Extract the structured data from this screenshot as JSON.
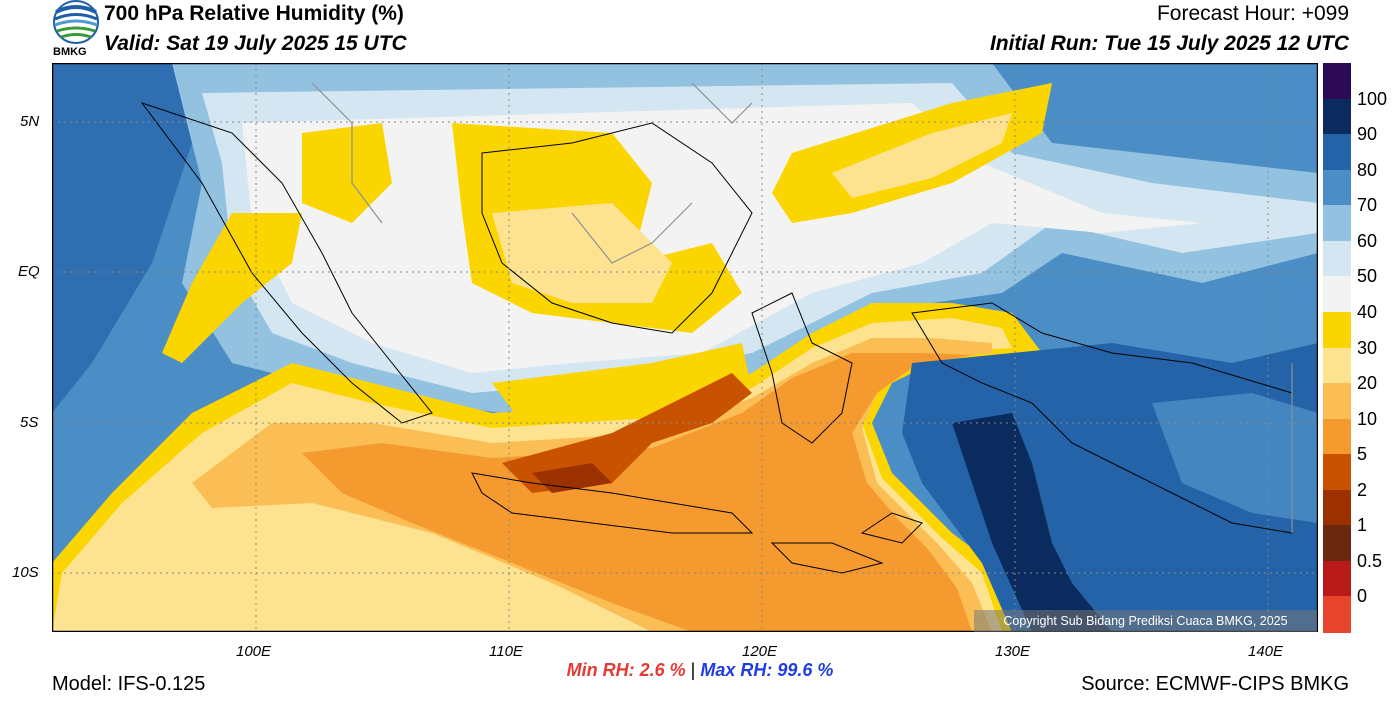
{
  "header": {
    "title": "700 hPa Relative Humidity (%)",
    "valid": "Valid: Sat 19 July 2025 15 UTC",
    "forecast_hour": "Forecast Hour: +099",
    "initial_run": "Initial Run: Tue 15 July 2025 12 UTC",
    "logo_text": "BMKG"
  },
  "map": {
    "lat_labels": [
      "5N",
      "EQ",
      "5S",
      "10S"
    ],
    "lon_labels": [
      "100E",
      "110E",
      "120E",
      "130E",
      "140E"
    ],
    "copyright": "Copyright Sub Bidang Prediksi Cuaca BMKG, 2025"
  },
  "legend": {
    "labels": [
      "100",
      "90",
      "80",
      "70",
      "60",
      "50",
      "40",
      "30",
      "20",
      "10",
      "5",
      "2",
      "1",
      "0.5",
      "0"
    ],
    "colors": [
      "#2d0a55",
      "#0b2b5e",
      "#2563a9",
      "#4b8ec6",
      "#93c1e0",
      "#d4e6f1",
      "#f3f3f3",
      "#fbd500",
      "#fde38f",
      "#fbbe55",
      "#f59a2e",
      "#c85200",
      "#9c3100",
      "#6b2810",
      "#b81a1a",
      "#e8432d"
    ]
  },
  "footer": {
    "min_rh_label": "Min RH:",
    "min_rh_value": "2.6 %",
    "separator": "|",
    "max_rh_label": "Max RH:",
    "max_rh_value": "99.6 %",
    "model": "Model: IFS-0.125",
    "source": "Source: ECMWF-CIPS BMKG"
  }
}
